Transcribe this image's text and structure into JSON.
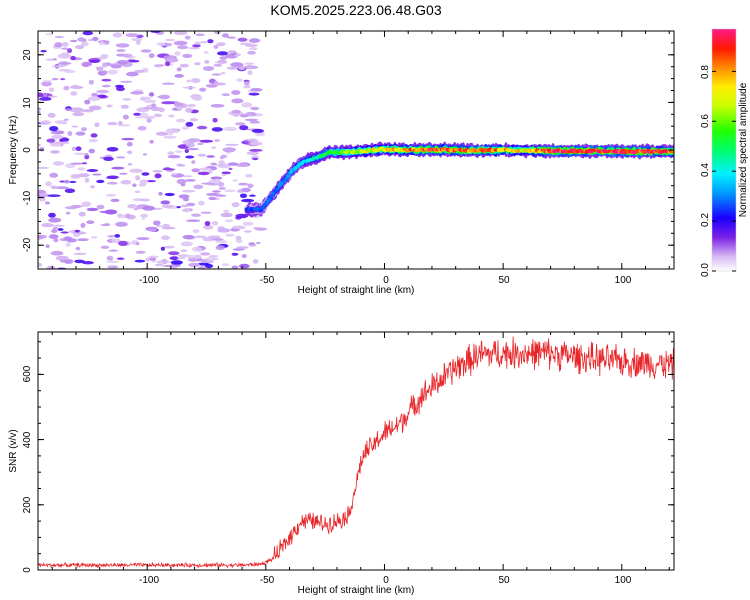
{
  "title": "KOM5.2025.223.06.48.G03",
  "colors": {
    "snr_line": "#e8262a",
    "axis": "#000000"
  },
  "chart_data": [
    {
      "type": "heatmap",
      "xlabel": "Height of straight line (km)",
      "ylabel": "Frequency (Hz)",
      "xlim": [
        -146,
        122
      ],
      "ylim": [
        -25,
        25
      ],
      "xticks": [
        -100,
        -50,
        0,
        50,
        100
      ],
      "xtick_labels": [
        "-100",
        "-50",
        "0",
        "50",
        "100"
      ],
      "yticks": [
        -20,
        -10,
        0,
        10,
        20
      ],
      "ytick_labels": [
        "-20",
        "-10",
        "0",
        "10",
        "20"
      ],
      "ridge": {
        "x": [
          -58,
          -52,
          -48,
          -44,
          -40,
          -36,
          -32,
          -28,
          -24,
          -20,
          -10,
          0,
          10,
          20,
          30,
          40,
          50,
          60,
          70,
          80,
          90,
          100,
          110,
          122
        ],
        "y": [
          -12.5,
          -12.5,
          -10,
          -7.5,
          -5,
          -3,
          -2,
          -1.5,
          -0.5,
          -0.5,
          -0.3,
          0.2,
          0,
          0.1,
          0,
          -0.1,
          0,
          -0.1,
          -0.2,
          -0.2,
          -0.2,
          -0.3,
          -0.3,
          -0.3
        ],
        "amplitude": [
          0.25,
          0.28,
          0.3,
          0.32,
          0.35,
          0.4,
          0.45,
          0.5,
          0.55,
          0.6,
          0.7,
          0.75,
          0.85,
          0.92,
          0.9,
          0.88,
          0.85,
          0.75,
          0.95,
          0.98,
          0.97,
          0.96,
          0.95,
          0.9
        ]
      },
      "noise_region_x": [
        -146,
        -52
      ],
      "colorbar": {
        "label": "Normalized spectral amplitude",
        "range": [
          0,
          0.97
        ],
        "ticks": [
          0.0,
          0.2,
          0.4,
          0.6,
          0.8
        ],
        "tick_labels": [
          "0.0",
          "0.2",
          "0.4",
          "0.6",
          "0.8"
        ]
      }
    },
    {
      "type": "line",
      "xlabel": "Height of straight line (km)",
      "ylabel": "SNR (v/v)",
      "xlim": [
        -146,
        122
      ],
      "ylim": [
        0,
        730
      ],
      "xticks": [
        -100,
        -50,
        0,
        50,
        100
      ],
      "xtick_labels": [
        "-100",
        "-50",
        "0",
        "50",
        "100"
      ],
      "yticks": [
        0,
        200,
        400,
        600
      ],
      "ytick_labels": [
        "0",
        "200",
        "400",
        "600"
      ],
      "series": [
        {
          "name": "SNR",
          "x": [
            -146,
            -120,
            -100,
            -80,
            -60,
            -52,
            -48,
            -45,
            -40,
            -35,
            -30,
            -25,
            -20,
            -15,
            -12,
            -10,
            -8,
            -5,
            0,
            5,
            10,
            15,
            20,
            25,
            30,
            35,
            40,
            50,
            60,
            70,
            80,
            90,
            100,
            110,
            122
          ],
          "y": [
            15,
            15,
            15,
            15,
            15,
            18,
            30,
            50,
            100,
            150,
            150,
            140,
            150,
            170,
            260,
            330,
            360,
            380,
            420,
            440,
            480,
            530,
            560,
            590,
            620,
            640,
            660,
            665,
            665,
            665,
            655,
            645,
            640,
            635,
            630
          ],
          "noise_amplitude": 40
        }
      ]
    }
  ]
}
